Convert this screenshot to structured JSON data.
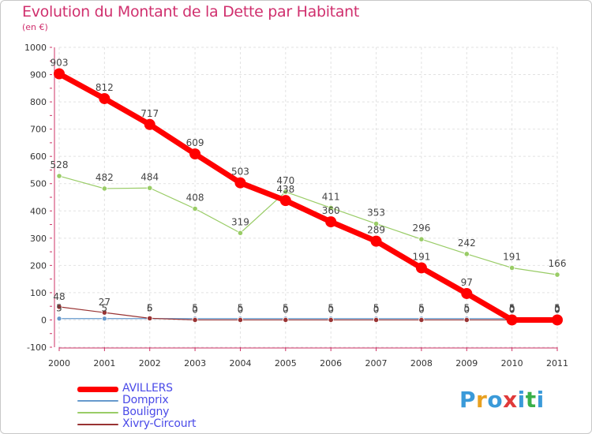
{
  "header": {
    "title": "Evolution du Montant de la Dette par Habitant",
    "subtitle": "(en €)"
  },
  "chart_data": {
    "type": "line",
    "title": "Evolution du Montant de la Dette par Habitant",
    "ylabel": "(en €)",
    "xlabel": "",
    "x": [
      2000,
      2001,
      2002,
      2003,
      2004,
      2005,
      2006,
      2007,
      2008,
      2009,
      2010,
      2011
    ],
    "ylim": [
      -100,
      1000
    ],
    "yticks": [
      -100,
      0,
      100,
      200,
      300,
      400,
      500,
      600,
      700,
      800,
      900,
      1000
    ],
    "grid": true,
    "legend_position": "bottom-left",
    "series": [
      {
        "name": "AVILLERS",
        "color": "#ff0000",
        "values": [
          903,
          812,
          717,
          609,
          503,
          438,
          360,
          289,
          191,
          97,
          0,
          0
        ]
      },
      {
        "name": "Domprix",
        "color": "#6699cc",
        "values": [
          5,
          5,
          5,
          5,
          5,
          5,
          5,
          5,
          5,
          5,
          5,
          5
        ]
      },
      {
        "name": "Bouligny",
        "color": "#99cc66",
        "values": [
          528,
          482,
          484,
          408,
          319,
          470,
          411,
          353,
          296,
          242,
          191,
          166
        ]
      },
      {
        "name": "Xivry-Circourt",
        "color": "#993333",
        "values": [
          48,
          27,
          6,
          0,
          0,
          0,
          0,
          0,
          0,
          0,
          0,
          0
        ]
      }
    ],
    "point_labels": [
      {
        "series": "AVILLERS",
        "labels": [
          "903",
          "812",
          "717",
          "609",
          "503",
          "438",
          "360",
          "289",
          "191",
          "97",
          "0",
          "0"
        ]
      },
      {
        "series": "Domprix",
        "labels": [
          "5",
          "5",
          "5",
          "5",
          "5",
          "5",
          "5",
          "5",
          "5",
          "5",
          "5",
          "5"
        ]
      },
      {
        "series": "Bouligny",
        "labels": [
          "528",
          "482",
          "484",
          "408",
          "319",
          "470",
          "411",
          "353",
          "296",
          "242",
          "191",
          "166"
        ]
      },
      {
        "series": "Xivry-Circourt",
        "labels": [
          "48",
          "27",
          "6",
          "0",
          "0",
          "0",
          "0",
          "0",
          "0",
          "0",
          "0",
          "0"
        ]
      }
    ]
  },
  "brand": {
    "letters": [
      "P",
      "r",
      "o",
      "x",
      "i",
      "t",
      "i"
    ],
    "colors": [
      "#3a9ad9",
      "#e8a020",
      "#3a9ad9",
      "#e03a3a",
      "#3a9ad9",
      "#3ab04a",
      "#3a9ad9"
    ]
  }
}
